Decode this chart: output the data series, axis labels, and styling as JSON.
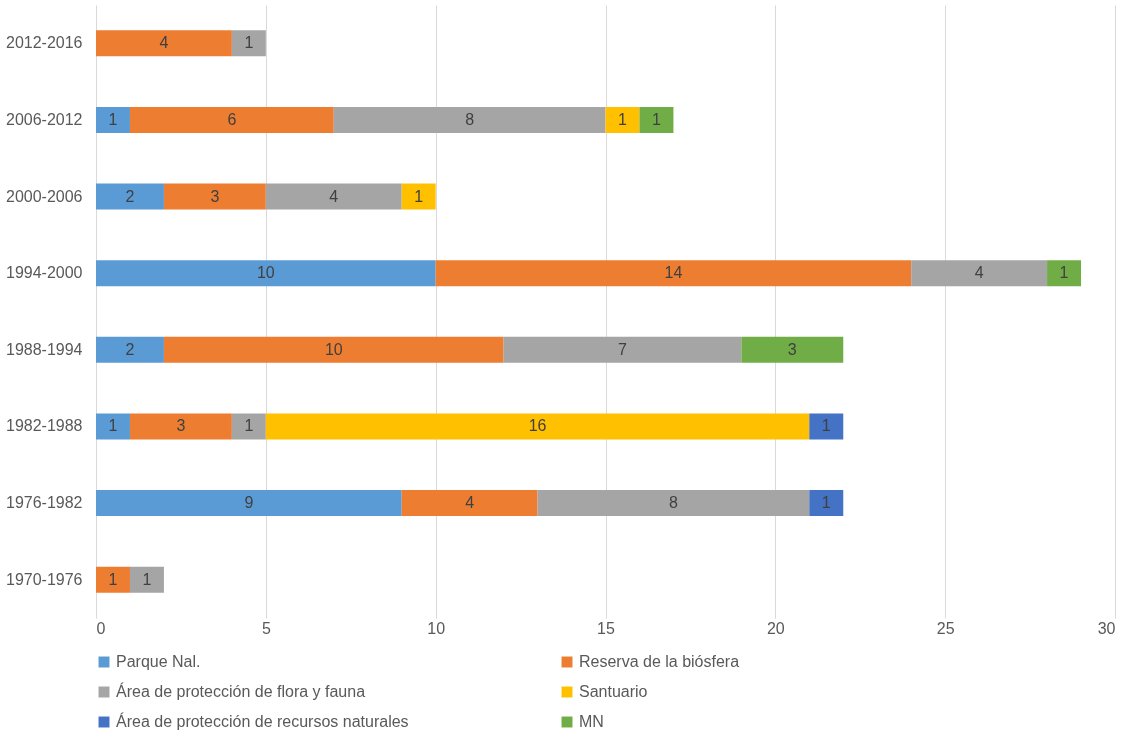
{
  "chart_data": {
    "type": "bar",
    "orientation": "horizontal",
    "stacked": true,
    "data_labels": true,
    "categories": [
      "2012-2016",
      "2006-2012",
      "2000-2006",
      "1994-2000",
      "1988-1994",
      "1982-1988",
      "1976-1982",
      "1970-1976"
    ],
    "series": [
      {
        "name": "Parque Nal.",
        "color": "#5b9bd5",
        "values": [
          null,
          1,
          2,
          10,
          2,
          1,
          9,
          null
        ]
      },
      {
        "name": "Reserva de la biósfera",
        "color": "#ed7d31",
        "values": [
          4,
          6,
          3,
          14,
          10,
          3,
          4,
          1
        ]
      },
      {
        "name": "Área de protección de flora y fauna",
        "color": "#a5a5a5",
        "values": [
          1,
          8,
          4,
          4,
          7,
          1,
          8,
          1
        ]
      },
      {
        "name": "Santuario",
        "color": "#ffc000",
        "values": [
          null,
          1,
          1,
          null,
          null,
          16,
          null,
          null
        ]
      },
      {
        "name": "Área de protección de recursos naturales",
        "color": "#4472c4",
        "values": [
          null,
          null,
          null,
          null,
          null,
          1,
          1,
          null
        ]
      },
      {
        "name": "MN",
        "color": "#70ad47",
        "values": [
          null,
          1,
          null,
          1,
          3,
          null,
          null,
          null
        ]
      }
    ],
    "xlim": [
      0,
      30
    ],
    "xticks": [
      0,
      5,
      10,
      15,
      20,
      25,
      30
    ],
    "grid": "x",
    "legend": "bottom"
  }
}
